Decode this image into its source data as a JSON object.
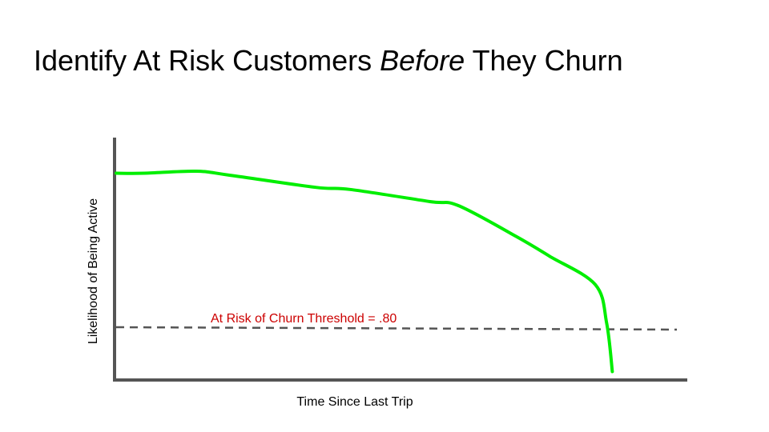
{
  "slide": {
    "title_part1": "Identify At Risk Customers ",
    "title_emphasis": "Before",
    "title_part2": " They Churn"
  },
  "chart_data": {
    "type": "line",
    "title": "",
    "xlabel": "Time Since Last Trip",
    "ylabel": "Likelihood of Being Active",
    "xlim": [
      0,
      1
    ],
    "ylim": [
      0,
      1
    ],
    "grid": false,
    "series": [
      {
        "color": "#00ee00",
        "x": [
          0.0,
          0.05,
          0.14,
          0.2,
          0.35,
          0.41,
          0.55,
          0.6,
          0.7,
          0.76,
          0.84,
          0.86,
          0.87
        ],
        "y": [
          0.99,
          0.99,
          1.0,
          0.98,
          0.92,
          0.91,
          0.85,
          0.83,
          0.68,
          0.58,
          0.44,
          0.25,
          0.01
        ]
      }
    ],
    "threshold": {
      "label": "At Risk of Churn Threshold = .80",
      "label_color": "#cc0000",
      "line_color": "#555555",
      "style": "dashed"
    }
  }
}
